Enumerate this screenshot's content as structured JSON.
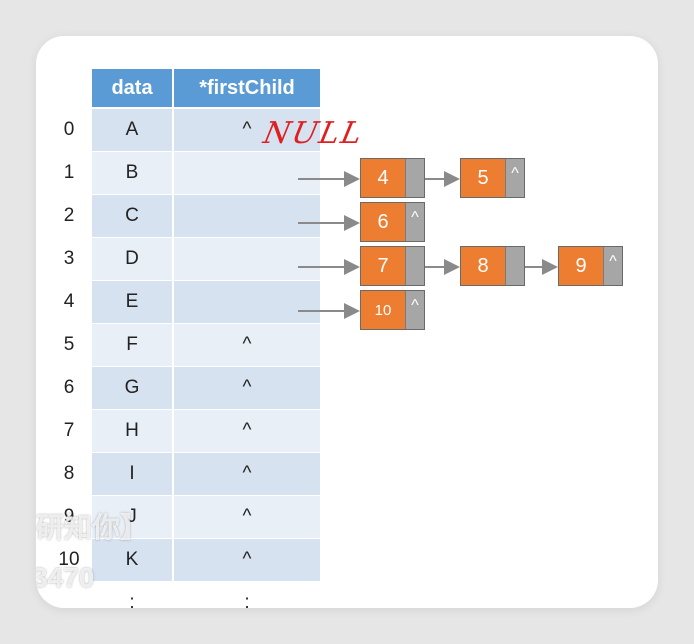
{
  "table": {
    "header_data": "data",
    "header_first_child": "*firstChild",
    "rows": [
      {
        "index": "0",
        "data": "A",
        "first_child": "^"
      },
      {
        "index": "1",
        "data": "B",
        "first_child": ""
      },
      {
        "index": "2",
        "data": "C",
        "first_child": ""
      },
      {
        "index": "3",
        "data": "D",
        "first_child": ""
      },
      {
        "index": "4",
        "data": "E",
        "first_child": ""
      },
      {
        "index": "5",
        "data": "F",
        "first_child": "^"
      },
      {
        "index": "6",
        "data": "G",
        "first_child": "^"
      },
      {
        "index": "7",
        "data": "H",
        "first_child": "^"
      },
      {
        "index": "8",
        "data": "I",
        "first_child": "^"
      },
      {
        "index": "9",
        "data": "J",
        "first_child": "^"
      },
      {
        "index": "10",
        "data": "K",
        "first_child": "^"
      },
      {
        "index": "",
        "data": ":",
        "first_child": ":"
      }
    ]
  },
  "annotation": {
    "null_note": "NULL",
    "color": "#e02020"
  },
  "child_lists": [
    {
      "row": "1",
      "nodes": [
        {
          "value": "4",
          "next": ""
        },
        {
          "value": "5",
          "next": "^"
        }
      ]
    },
    {
      "row": "2",
      "nodes": [
        {
          "value": "6",
          "next": "^"
        }
      ]
    },
    {
      "row": "3",
      "nodes": [
        {
          "value": "7",
          "next": ""
        },
        {
          "value": "8",
          "next": ""
        },
        {
          "value": "9",
          "next": "^"
        }
      ]
    },
    {
      "row": "4",
      "nodes": [
        {
          "value": "10",
          "next": "^"
        }
      ]
    }
  ],
  "watermark": {
    "line1": "研知你】",
    "line2": "3470"
  },
  "colors": {
    "header": "#5b9bd5",
    "row_a": "#d6e2f0",
    "row_b": "#e9eff7",
    "node": "#ed7d31",
    "pointer": "#a6a6a6"
  }
}
